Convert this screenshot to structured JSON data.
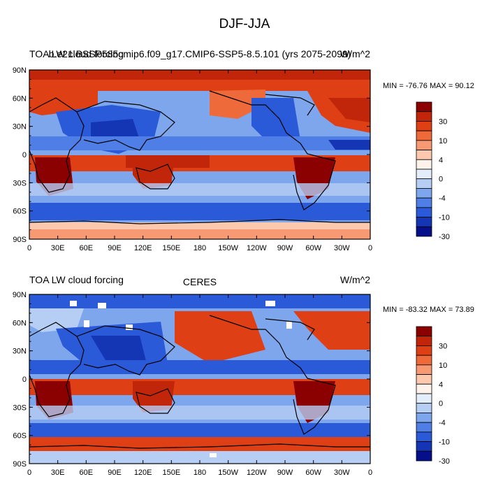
{
  "page_title": "DJF-JJA",
  "panels": [
    {
      "left_title": "TOA LW cloud forcing",
      "center_title": "b.e21.BSSP585cmip6.f09_g17.CMIP6-SSP5-8.5.101 (yrs 2075-2099)",
      "right_title": "W/m^2",
      "stats": "MIN = -76.76 MAX =  90.12"
    },
    {
      "left_title": "TOA LW cloud forcing",
      "center_title": "CERES",
      "right_title": "W/m^2",
      "stats": "MIN = -83.32 MAX =  73.89"
    }
  ],
  "lat_labels": [
    "90N",
    "60N",
    "30N",
    "0",
    "30S",
    "60S",
    "90S"
  ],
  "lon_labels": [
    "0",
    "30E",
    "60E",
    "90E",
    "120E",
    "150E",
    "180",
    "150W",
    "120W",
    "90W",
    "60W",
    "30W",
    "0"
  ],
  "colorbar": {
    "labels": [
      "30",
      "10",
      "4",
      "0",
      "-4",
      "-10",
      "-30"
    ],
    "colors": [
      "#8b0000",
      "#c1260b",
      "#df3f14",
      "#ef6a3a",
      "#f79a73",
      "#fcc9ae",
      "#fdf3ea",
      "#e4eefb",
      "#b6cdf4",
      "#7ea6ec",
      "#4f7fe6",
      "#2a5ad8",
      "#1436b5",
      "#060f8a"
    ]
  }
}
